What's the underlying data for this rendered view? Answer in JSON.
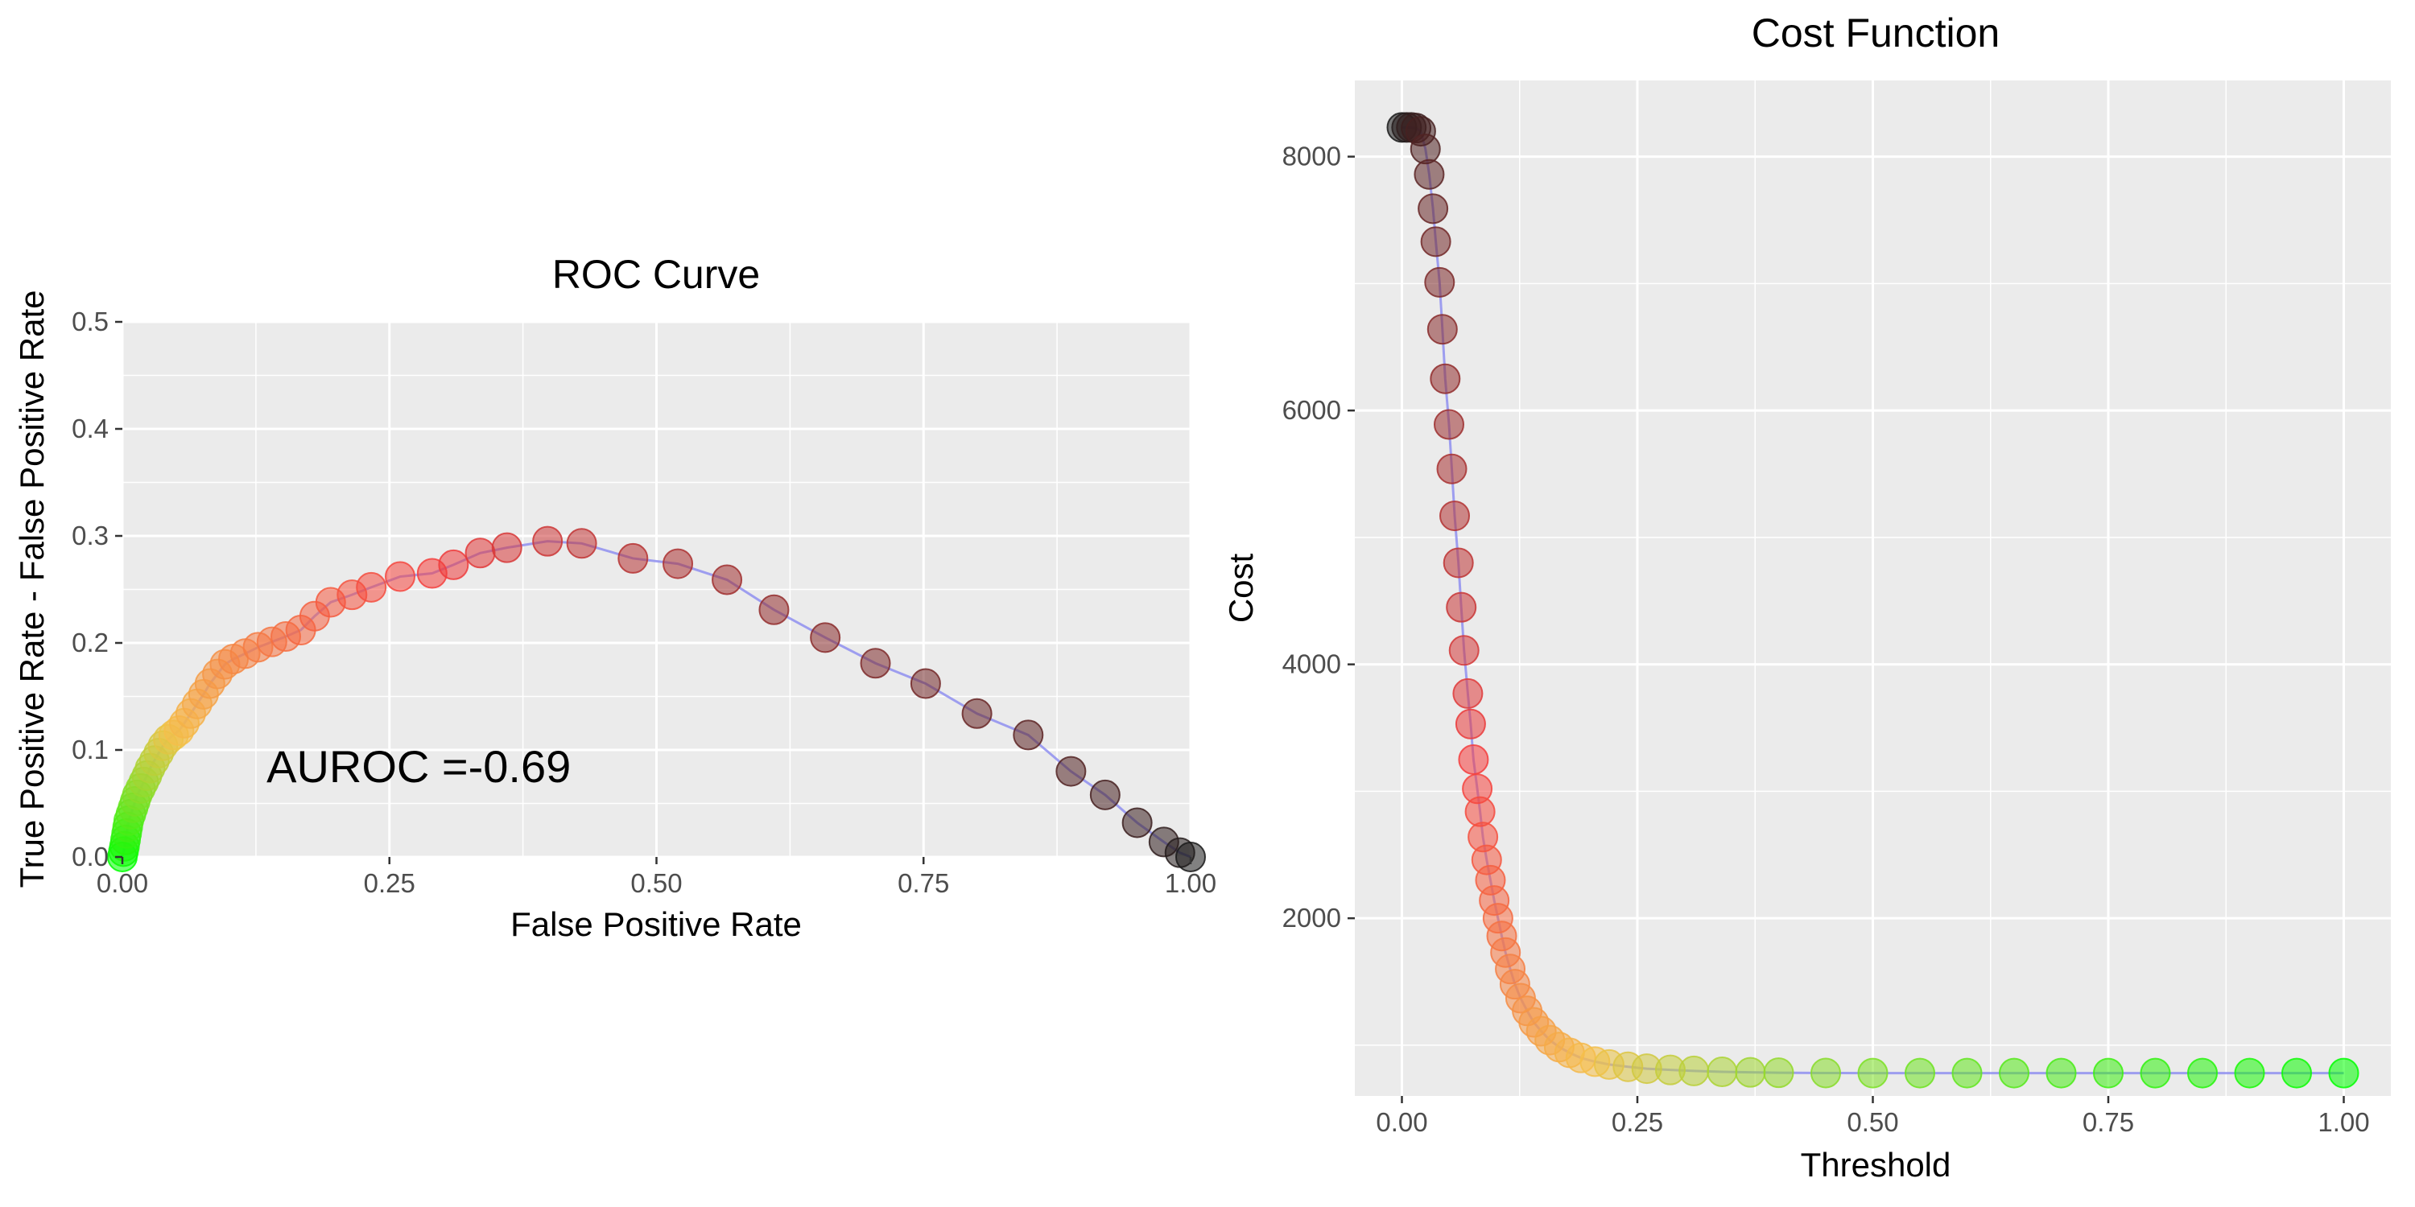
{
  "chart_data": [
    {
      "type": "scatter",
      "title": "ROC Curve",
      "xlabel": "False Positive Rate",
      "ylabel": "True Positive Rate - False Positive Rate",
      "xlim": [
        0,
        1
      ],
      "ylim": [
        0,
        0.5
      ],
      "xticks": [
        "0.00",
        "0.25",
        "0.50",
        "0.75",
        "1.00"
      ],
      "yticks": [
        "0.0",
        "0.1",
        "0.2",
        "0.3",
        "0.4",
        "0.5"
      ],
      "grid": true,
      "connecting_line": true,
      "annotation": {
        "text": "AUROC =-0.69",
        "x": 0.3,
        "y": 0.1
      },
      "color_gradient": [
        "#00ff00",
        "#f5c04a",
        "#f53d3d",
        "#1a1a1a"
      ],
      "points": [
        {
          "x": 0.0,
          "y": 0.0
        },
        {
          "x": 0.001,
          "y": 0.005
        },
        {
          "x": 0.002,
          "y": 0.01
        },
        {
          "x": 0.003,
          "y": 0.016
        },
        {
          "x": 0.004,
          "y": 0.022
        },
        {
          "x": 0.005,
          "y": 0.028
        },
        {
          "x": 0.006,
          "y": 0.034
        },
        {
          "x": 0.008,
          "y": 0.04
        },
        {
          "x": 0.01,
          "y": 0.046
        },
        {
          "x": 0.012,
          "y": 0.052
        },
        {
          "x": 0.014,
          "y": 0.058
        },
        {
          "x": 0.017,
          "y": 0.064
        },
        {
          "x": 0.02,
          "y": 0.07
        },
        {
          "x": 0.023,
          "y": 0.076
        },
        {
          "x": 0.026,
          "y": 0.083
        },
        {
          "x": 0.03,
          "y": 0.09
        },
        {
          "x": 0.034,
          "y": 0.097
        },
        {
          "x": 0.038,
          "y": 0.104
        },
        {
          "x": 0.043,
          "y": 0.11
        },
        {
          "x": 0.048,
          "y": 0.114
        },
        {
          "x": 0.053,
          "y": 0.118
        },
        {
          "x": 0.058,
          "y": 0.125
        },
        {
          "x": 0.064,
          "y": 0.134
        },
        {
          "x": 0.07,
          "y": 0.143
        },
        {
          "x": 0.076,
          "y": 0.152
        },
        {
          "x": 0.082,
          "y": 0.162
        },
        {
          "x": 0.089,
          "y": 0.171
        },
        {
          "x": 0.096,
          "y": 0.18
        },
        {
          "x": 0.104,
          "y": 0.185
        },
        {
          "x": 0.115,
          "y": 0.19
        },
        {
          "x": 0.127,
          "y": 0.196
        },
        {
          "x": 0.14,
          "y": 0.201
        },
        {
          "x": 0.153,
          "y": 0.206
        },
        {
          "x": 0.167,
          "y": 0.212
        },
        {
          "x": 0.18,
          "y": 0.225
        },
        {
          "x": 0.195,
          "y": 0.238
        },
        {
          "x": 0.215,
          "y": 0.245
        },
        {
          "x": 0.233,
          "y": 0.252
        },
        {
          "x": 0.26,
          "y": 0.262
        },
        {
          "x": 0.29,
          "y": 0.265
        },
        {
          "x": 0.31,
          "y": 0.273
        },
        {
          "x": 0.335,
          "y": 0.284
        },
        {
          "x": 0.36,
          "y": 0.289
        },
        {
          "x": 0.398,
          "y": 0.295
        },
        {
          "x": 0.43,
          "y": 0.293
        },
        {
          "x": 0.478,
          "y": 0.279
        },
        {
          "x": 0.52,
          "y": 0.274
        },
        {
          "x": 0.566,
          "y": 0.259
        },
        {
          "x": 0.61,
          "y": 0.231
        },
        {
          "x": 0.658,
          "y": 0.205
        },
        {
          "x": 0.705,
          "y": 0.181
        },
        {
          "x": 0.752,
          "y": 0.162
        },
        {
          "x": 0.8,
          "y": 0.134
        },
        {
          "x": 0.848,
          "y": 0.114
        },
        {
          "x": 0.888,
          "y": 0.08
        },
        {
          "x": 0.92,
          "y": 0.058
        },
        {
          "x": 0.95,
          "y": 0.032
        },
        {
          "x": 0.975,
          "y": 0.014
        },
        {
          "x": 0.99,
          "y": 0.004
        },
        {
          "x": 1.0,
          "y": 0.0
        }
      ]
    },
    {
      "type": "scatter",
      "title": "Cost Function",
      "xlabel": "Threshold",
      "ylabel": "Cost",
      "xlim": [
        -0.05,
        1.05
      ],
      "ylim": [
        600,
        8600
      ],
      "xticks": [
        "0.00",
        "0.25",
        "0.50",
        "0.75",
        "1.00"
      ],
      "yticks": [
        "2000",
        "4000",
        "6000",
        "8000"
      ],
      "grid": true,
      "connecting_line": true,
      "color_gradient": [
        "#1a1a1a",
        "#f53d3d",
        "#f5c04a",
        "#00ff00"
      ],
      "points": [
        {
          "x": 0.0,
          "y": 8230
        },
        {
          "x": 0.005,
          "y": 8230
        },
        {
          "x": 0.01,
          "y": 8230
        },
        {
          "x": 0.015,
          "y": 8225
        },
        {
          "x": 0.02,
          "y": 8200
        },
        {
          "x": 0.025,
          "y": 8060
        },
        {
          "x": 0.029,
          "y": 7860
        },
        {
          "x": 0.033,
          "y": 7590
        },
        {
          "x": 0.036,
          "y": 7330
        },
        {
          "x": 0.04,
          "y": 7010
        },
        {
          "x": 0.043,
          "y": 6640
        },
        {
          "x": 0.046,
          "y": 6250
        },
        {
          "x": 0.05,
          "y": 5890
        },
        {
          "x": 0.053,
          "y": 5540
        },
        {
          "x": 0.056,
          "y": 5170
        },
        {
          "x": 0.06,
          "y": 4800
        },
        {
          "x": 0.063,
          "y": 4450
        },
        {
          "x": 0.066,
          "y": 4110
        },
        {
          "x": 0.07,
          "y": 3770
        },
        {
          "x": 0.073,
          "y": 3530
        },
        {
          "x": 0.076,
          "y": 3250
        },
        {
          "x": 0.08,
          "y": 3020
        },
        {
          "x": 0.083,
          "y": 2840
        },
        {
          "x": 0.086,
          "y": 2640
        },
        {
          "x": 0.09,
          "y": 2460
        },
        {
          "x": 0.094,
          "y": 2300
        },
        {
          "x": 0.098,
          "y": 2140
        },
        {
          "x": 0.102,
          "y": 2000
        },
        {
          "x": 0.106,
          "y": 1860
        },
        {
          "x": 0.11,
          "y": 1730
        },
        {
          "x": 0.115,
          "y": 1600
        },
        {
          "x": 0.12,
          "y": 1480
        },
        {
          "x": 0.126,
          "y": 1370
        },
        {
          "x": 0.133,
          "y": 1270
        },
        {
          "x": 0.14,
          "y": 1180
        },
        {
          "x": 0.148,
          "y": 1110
        },
        {
          "x": 0.157,
          "y": 1040
        },
        {
          "x": 0.167,
          "y": 985
        },
        {
          "x": 0.178,
          "y": 940
        },
        {
          "x": 0.19,
          "y": 900
        },
        {
          "x": 0.205,
          "y": 870
        },
        {
          "x": 0.22,
          "y": 848
        },
        {
          "x": 0.24,
          "y": 830
        },
        {
          "x": 0.26,
          "y": 815
        },
        {
          "x": 0.285,
          "y": 805
        },
        {
          "x": 0.31,
          "y": 797
        },
        {
          "x": 0.34,
          "y": 790
        },
        {
          "x": 0.37,
          "y": 786
        },
        {
          "x": 0.4,
          "y": 783
        },
        {
          "x": 0.45,
          "y": 781
        },
        {
          "x": 0.5,
          "y": 780
        },
        {
          "x": 0.55,
          "y": 780
        },
        {
          "x": 0.6,
          "y": 780
        },
        {
          "x": 0.65,
          "y": 780
        },
        {
          "x": 0.7,
          "y": 780
        },
        {
          "x": 0.75,
          "y": 780
        },
        {
          "x": 0.8,
          "y": 780
        },
        {
          "x": 0.85,
          "y": 780
        },
        {
          "x": 0.9,
          "y": 780
        },
        {
          "x": 0.95,
          "y": 780
        },
        {
          "x": 1.0,
          "y": 780
        }
      ]
    }
  ]
}
